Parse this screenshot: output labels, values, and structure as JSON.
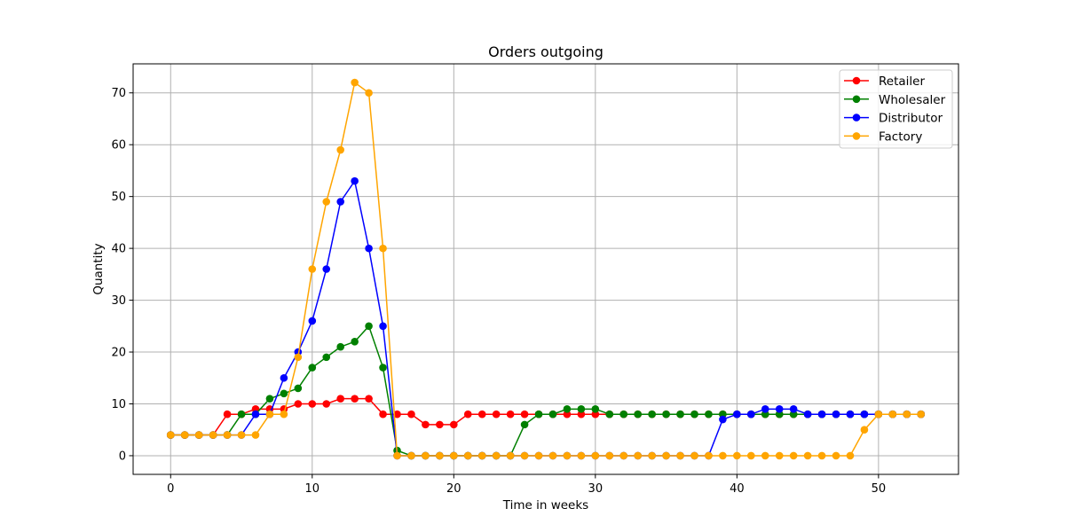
{
  "chart_data": {
    "type": "line",
    "title": "Orders outgoing",
    "xlabel": "Time in weeks",
    "ylabel": "Quantity",
    "xlim": [
      -2.65,
      55.65
    ],
    "ylim": [
      -3.6,
      75.6
    ],
    "xticks": [
      0,
      10,
      20,
      30,
      40,
      50
    ],
    "yticks": [
      0,
      10,
      20,
      30,
      40,
      50,
      60,
      70
    ],
    "grid": true,
    "legend_position": "top-right",
    "x": [
      0,
      1,
      2,
      3,
      4,
      5,
      6,
      7,
      8,
      9,
      10,
      11,
      12,
      13,
      14,
      15,
      16,
      17,
      18,
      19,
      20,
      21,
      22,
      23,
      24,
      25,
      26,
      27,
      28,
      29,
      30,
      31,
      32,
      33,
      34,
      35,
      36,
      37,
      38,
      39,
      40,
      41,
      42,
      43,
      44,
      45,
      46,
      47,
      48,
      49,
      50,
      51,
      52,
      53
    ],
    "series": [
      {
        "name": "Retailer",
        "color": "#ff0000",
        "values": [
          4,
          4,
          4,
          4,
          8,
          8,
          9,
          9,
          9,
          10,
          10,
          10,
          11,
          11,
          11,
          8,
          8,
          8,
          6,
          6,
          6,
          8,
          8,
          8,
          8,
          8,
          8,
          8,
          8,
          8,
          8,
          8,
          8,
          8,
          8,
          8,
          8,
          8,
          8,
          8,
          8,
          8,
          8,
          8,
          8,
          8,
          8,
          8,
          8,
          8,
          8,
          8,
          8,
          8
        ]
      },
      {
        "name": "Wholesaler",
        "color": "#008000",
        "values": [
          4,
          4,
          4,
          4,
          4,
          8,
          8,
          11,
          12,
          13,
          17,
          19,
          21,
          22,
          25,
          17,
          1,
          0,
          0,
          0,
          0,
          0,
          0,
          0,
          0,
          6,
          8,
          8,
          9,
          9,
          9,
          8,
          8,
          8,
          8,
          8,
          8,
          8,
          8,
          8,
          8,
          8,
          8,
          8,
          8,
          8,
          8,
          8,
          8,
          8,
          8,
          8,
          8,
          8
        ]
      },
      {
        "name": "Distributor",
        "color": "#0000ff",
        "values": [
          4,
          4,
          4,
          4,
          4,
          4,
          8,
          8,
          15,
          20,
          26,
          36,
          49,
          53,
          40,
          25,
          0,
          0,
          0,
          0,
          0,
          0,
          0,
          0,
          0,
          0,
          0,
          0,
          0,
          0,
          0,
          0,
          0,
          0,
          0,
          0,
          0,
          0,
          0,
          7,
          8,
          8,
          9,
          9,
          9,
          8,
          8,
          8,
          8,
          8,
          8,
          8,
          8,
          8
        ]
      },
      {
        "name": "Factory",
        "color": "#ffa500",
        "values": [
          4,
          4,
          4,
          4,
          4,
          4,
          4,
          8,
          8,
          19,
          36,
          49,
          59,
          72,
          70,
          40,
          0,
          0,
          0,
          0,
          0,
          0,
          0,
          0,
          0,
          0,
          0,
          0,
          0,
          0,
          0,
          0,
          0,
          0,
          0,
          0,
          0,
          0,
          0,
          0,
          0,
          0,
          0,
          0,
          0,
          0,
          0,
          0,
          0,
          5,
          8,
          8,
          8,
          8
        ]
      }
    ]
  }
}
